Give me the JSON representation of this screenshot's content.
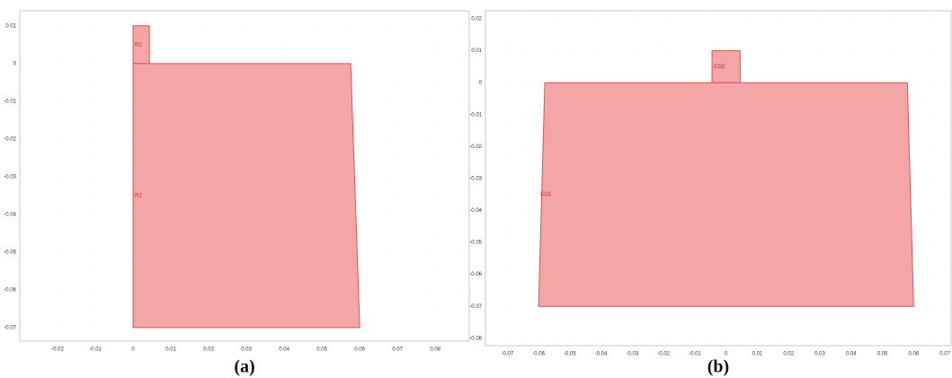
{
  "chart_data": [
    {
      "type": "geometry",
      "caption": "(a)",
      "color": "#f4a6a6",
      "grid": true,
      "xlim": [
        -0.03,
        0.089
      ],
      "ylim": [
        -0.0736,
        0.014
      ],
      "xticks": [
        -0.02,
        -0.01,
        0,
        0.01,
        0.02,
        0.03,
        0.04,
        0.05,
        0.06,
        0.07,
        0.08
      ],
      "yticks": [
        0.01,
        0,
        -0.01,
        -0.02,
        -0.03,
        -0.04,
        -0.05,
        -0.06,
        -0.07
      ],
      "shapes": [
        {
          "label": "R2",
          "x": [
            0,
            0.0043,
            0.0043,
            0
          ],
          "y": [
            0.01,
            0.01,
            0,
            0
          ]
        },
        {
          "label": "R1",
          "x": [
            0,
            0.0576,
            0.06,
            0
          ],
          "y": [
            0,
            0,
            -0.07,
            -0.07
          ]
        }
      ]
    },
    {
      "type": "geometry",
      "caption": "(b)",
      "color": "#f4a6a6",
      "grid": true,
      "xlim": [
        -0.077,
        0.072
      ],
      "ylim": [
        -0.0823,
        0.0225
      ],
      "xticks": [
        -0.07,
        -0.06,
        -0.05,
        -0.04,
        -0.03,
        -0.02,
        -0.01,
        0,
        0.01,
        0.02,
        0.03,
        0.04,
        0.05,
        0.06,
        0.07
      ],
      "yticks": [
        0.02,
        0.01,
        0,
        -0.01,
        -0.02,
        -0.03,
        -0.04,
        -0.05,
        -0.06,
        -0.07,
        -0.08
      ],
      "shapes": [
        {
          "label": "CO2",
          "x": [
            -0.0045,
            0.0045,
            0.0045,
            -0.0045
          ],
          "y": [
            0.01,
            0.01,
            0,
            0
          ]
        },
        {
          "label": "CO1",
          "x": [
            -0.058,
            0.058,
            0.06,
            -0.06
          ],
          "y": [
            0,
            0,
            -0.07,
            -0.07
          ]
        }
      ]
    }
  ]
}
